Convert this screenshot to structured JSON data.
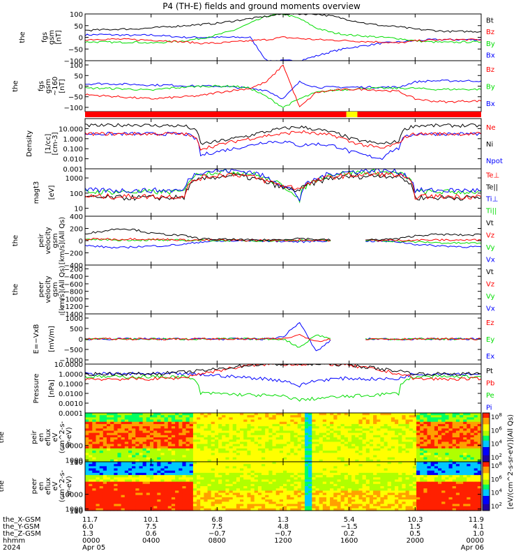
{
  "title": "P4 (TH-E) fields and ground moments overview",
  "colors": {
    "black": "#000000",
    "red": "#ff0000",
    "green": "#00dd00",
    "blue": "#0000ff",
    "yellow": "#ffff00"
  },
  "bars": {
    "segments": [
      {
        "from": "0000",
        "to": "1550",
        "color": "red"
      },
      {
        "from": "1550",
        "to": "1630",
        "color": "yellow"
      },
      {
        "from": "1630",
        "to": "2400",
        "color": "red"
      }
    ]
  },
  "chart_data": [
    {
      "type": "line",
      "id": "fgs",
      "ylabel": [
        "the",
        "fgs",
        "gsm",
        "[nT]"
      ],
      "ylim": [
        -100,
        100
      ],
      "yticks": [
        "100",
        "50",
        "0",
        "−50",
        "−100"
      ],
      "series": [
        {
          "name": "Bt",
          "color": "black",
          "values": [
            30,
            32,
            35,
            36,
            40,
            45,
            50,
            55,
            60,
            70,
            80,
            90,
            100,
            100,
            100,
            90,
            75,
            60,
            50,
            45,
            35,
            30,
            25,
            25,
            25
          ]
        },
        {
          "name": "Bz",
          "color": "red",
          "values": [
            -10,
            -8,
            -8,
            -10,
            -12,
            -15,
            -20,
            -25,
            -25,
            -20,
            -15,
            -10,
            0,
            -5,
            -10,
            -12,
            -15,
            -18,
            -20,
            -25,
            -15,
            -12,
            -10,
            -10,
            -10
          ]
        },
        {
          "name": "By",
          "color": "green",
          "values": [
            -20,
            -20,
            -22,
            -20,
            -25,
            -20,
            -15,
            -5,
            10,
            30,
            60,
            90,
            100,
            80,
            40,
            20,
            10,
            5,
            0,
            -5,
            -15,
            -20,
            -22,
            -20,
            -20
          ]
        },
        {
          "name": "Bx",
          "color": "blue",
          "values": [
            10,
            12,
            10,
            8,
            10,
            5,
            0,
            0,
            0,
            0,
            0,
            -100,
            -100,
            -100,
            -80,
            -60,
            -45,
            -35,
            -25,
            -20,
            -15,
            -10,
            -10,
            -10,
            -10
          ]
        }
      ]
    },
    {
      "type": "line",
      "id": "fgl",
      "ylabel": [
        "the",
        "fgs",
        "gsm",
        "~160",
        "[nT]"
      ],
      "ylim": [
        -120,
        120
      ],
      "yticks": [
        "100",
        "50",
        "0",
        "−50",
        "−100"
      ],
      "series": [
        {
          "name": "Bz",
          "color": "red",
          "values": [
            -40,
            -45,
            -50,
            -55,
            -60,
            -55,
            -50,
            -45,
            -30,
            -20,
            -10,
            20,
            100,
            -100,
            -30,
            -20,
            -15,
            -15,
            -20,
            -25,
            -60,
            -70,
            -75,
            -70,
            -70
          ]
        },
        {
          "name": "By",
          "color": "green",
          "values": [
            -10,
            -10,
            -12,
            -15,
            -20,
            -10,
            -5,
            0,
            0,
            0,
            -10,
            -50,
            -100,
            -60,
            -30,
            -20,
            -15,
            -10,
            -10,
            -10,
            -10,
            -15,
            -15,
            -15,
            -15
          ]
        },
        {
          "name": "Bx",
          "color": "blue",
          "values": [
            10,
            12,
            10,
            8,
            5,
            5,
            2,
            0,
            0,
            -5,
            -10,
            -20,
            -60,
            20,
            -5,
            -5,
            -5,
            -5,
            -5,
            -5,
            20,
            25,
            25,
            25,
            25
          ]
        }
      ]
    },
    {
      "type": "line",
      "id": "density",
      "log": true,
      "ylabel": [
        "Density",
        "[1/cc]",
        "[cm-3]"
      ],
      "ylim": [
        0.001,
        100
      ],
      "yticks": [
        "10.000",
        "1.000",
        "0.100",
        "0.010",
        "0.001"
      ],
      "series": [
        {
          "name": "Ne",
          "color": "red",
          "values": [
            3,
            3,
            3,
            3,
            3,
            3,
            3,
            0.1,
            0.2,
            0.5,
            1,
            2,
            3,
            5,
            3,
            2,
            0.5,
            0.2,
            0.1,
            0.3,
            3,
            3,
            3,
            3,
            3
          ]
        },
        {
          "name": "Ni",
          "color": "black",
          "values": [
            20,
            20,
            22,
            25,
            20,
            20,
            18,
            0.3,
            0.5,
            1,
            2,
            5,
            10,
            15,
            8,
            4,
            1,
            0.5,
            0.3,
            0.5,
            20,
            20,
            20,
            20,
            20
          ]
        },
        {
          "name": "Npot",
          "color": "blue",
          "values": [
            3,
            3,
            3,
            3,
            3,
            3,
            3,
            0.02,
            0.05,
            0.1,
            0.2,
            0.5,
            0.5,
            0.2,
            0.3,
            0.2,
            0.05,
            0.02,
            0.01,
            0.1,
            3,
            3,
            3,
            3,
            3
          ]
        }
      ]
    },
    {
      "type": "line",
      "id": "temperature",
      "log": true,
      "ylabel": [
        "magt3",
        "[eV]"
      ],
      "ylim": [
        3,
        4000
      ],
      "yticks": [
        "1000",
        "100",
        "10"
      ],
      "series": [
        {
          "name": "Te⊥",
          "color": "red",
          "values": [
            60,
            60,
            60,
            60,
            60,
            60,
            60,
            1000,
            1500,
            1800,
            1200,
            600,
            300,
            200,
            600,
            1200,
            1500,
            1600,
            1800,
            1500,
            60,
            60,
            60,
            60,
            60
          ]
        },
        {
          "name": "Te||",
          "color": "black",
          "values": [
            50,
            50,
            50,
            50,
            50,
            50,
            50,
            800,
            1200,
            1500,
            1000,
            500,
            200,
            150,
            500,
            1000,
            1200,
            1300,
            1500,
            1200,
            50,
            50,
            50,
            50,
            50
          ]
        },
        {
          "name": "Ti⊥",
          "color": "blue",
          "values": [
            150,
            150,
            150,
            150,
            150,
            150,
            150,
            2500,
            3000,
            3000,
            2500,
            1000,
            300,
            30,
            800,
            2000,
            2500,
            3000,
            3000,
            2500,
            150,
            150,
            150,
            150,
            150
          ]
        },
        {
          "name": "Ti||",
          "color": "green",
          "values": [
            120,
            120,
            120,
            120,
            120,
            120,
            120,
            2000,
            2500,
            2500,
            2000,
            800,
            250,
            25,
            700,
            1800,
            2200,
            2500,
            2500,
            2000,
            120,
            120,
            120,
            120,
            120
          ]
        }
      ]
    },
    {
      "type": "line",
      "id": "pei_velocity",
      "ylabel": [
        "the",
        "peir",
        "velocity",
        "gsm",
        "[km/s](All Qs)"
      ],
      "ylim": [
        -400,
        400
      ],
      "yticks": [
        "400",
        "200",
        "0",
        "−200",
        "−400"
      ],
      "series": [
        {
          "name": "Vt",
          "color": "black",
          "values": [
            120,
            150,
            200,
            180,
            120,
            100,
            80,
            30,
            20,
            20,
            10,
            10,
            20,
            40,
            20,
            10,
            null,
            10,
            20,
            30,
            80,
            100,
            100,
            90,
            100
          ]
        },
        {
          "name": "Vz",
          "color": "red",
          "values": [
            20,
            30,
            20,
            30,
            20,
            20,
            10,
            10,
            10,
            5,
            5,
            5,
            0,
            10,
            5,
            5,
            null,
            5,
            5,
            5,
            10,
            10,
            10,
            10,
            10
          ]
        },
        {
          "name": "Vy",
          "color": "green",
          "values": [
            10,
            20,
            10,
            10,
            10,
            5,
            5,
            5,
            5,
            0,
            0,
            0,
            0,
            10,
            0,
            0,
            null,
            0,
            0,
            -10,
            -20,
            -30,
            -40,
            -40,
            -40
          ]
        },
        {
          "name": "Vx",
          "color": "blue",
          "values": [
            -80,
            -100,
            -120,
            -100,
            -90,
            -80,
            -60,
            -20,
            -10,
            -5,
            -5,
            -5,
            -10,
            -20,
            -5,
            -5,
            null,
            -5,
            -10,
            -20,
            -60,
            -80,
            -90,
            -100,
            -100
          ]
        }
      ]
    },
    {
      "type": "line",
      "id": "pee_velocity",
      "ylabel": [
        "the",
        "peer",
        "velocity",
        "gsm",
        "[km/s](All Qs)"
      ],
      "ylim": [
        -1400,
        -100
      ],
      "yticks": [
        "−200",
        "−400",
        "−600",
        "−800",
        "−1000",
        "−1200",
        "−1400"
      ],
      "series": [
        {
          "name": "Vt",
          "color": "black",
          "values": []
        },
        {
          "name": "Vz",
          "color": "red",
          "values": []
        },
        {
          "name": "Vy",
          "color": "green",
          "values": []
        },
        {
          "name": "Vx",
          "color": "blue",
          "values": []
        }
      ]
    },
    {
      "type": "line",
      "id": "efield",
      "ylabel": [
        "E=−VxB",
        "[mV/m]"
      ],
      "ylim": [
        -1200,
        1200
      ],
      "yticks": [
        "1000",
        "500",
        "0",
        "−500",
        "−1000"
      ],
      "series": [
        {
          "name": "Ez",
          "color": "red",
          "values": [
            0,
            0,
            0,
            0,
            0,
            0,
            0,
            0,
            0,
            0,
            0,
            0,
            0,
            200,
            -100,
            0,
            null,
            0,
            0,
            0,
            0,
            0,
            0,
            0,
            0
          ]
        },
        {
          "name": "Ey",
          "color": "green",
          "values": [
            0,
            0,
            0,
            0,
            0,
            0,
            0,
            0,
            0,
            0,
            0,
            0,
            0,
            -400,
            200,
            0,
            null,
            0,
            0,
            0,
            0,
            0,
            0,
            0,
            0
          ]
        },
        {
          "name": "Ex",
          "color": "blue",
          "values": [
            0,
            0,
            0,
            0,
            0,
            0,
            0,
            0,
            0,
            0,
            0,
            0,
            100,
            800,
            -600,
            0,
            null,
            0,
            0,
            0,
            0,
            0,
            0,
            0,
            0
          ]
        }
      ]
    },
    {
      "type": "line",
      "id": "pressure",
      "log": true,
      "ylabel": [
        "Pressure",
        "[nPa]"
      ],
      "ylim": [
        0.0001,
        10
      ],
      "yticks": [
        "10.0000",
        "1.0000",
        "0.1000",
        "0.0100",
        "0.0010",
        "0.0001"
      ],
      "series": [
        {
          "name": "Pt",
          "color": "black",
          "values": [
            1,
            1,
            1,
            1,
            1,
            1.2,
            1.5,
            2,
            3,
            5,
            8,
            10,
            10,
            10,
            10,
            10,
            8,
            5,
            3,
            2,
            1,
            1,
            1,
            1,
            1
          ]
        },
        {
          "name": "Pb",
          "color": "red",
          "values": [
            0.3,
            0.3,
            0.3,
            0.3,
            0.3,
            0.35,
            0.4,
            1,
            2,
            4,
            7,
            10,
            10,
            10,
            10,
            10,
            7,
            4,
            2,
            1,
            0.3,
            0.3,
            0.3,
            0.3,
            0.3
          ]
        },
        {
          "name": "Pe",
          "color": "green",
          "values": [
            0.5,
            0.5,
            0.5,
            0.5,
            0.5,
            0.5,
            0.5,
            0.01,
            0.01,
            0.008,
            0.007,
            0.006,
            0.005,
            0.002,
            0.003,
            0.004,
            0.005,
            0.006,
            0.008,
            0.01,
            0.5,
            0.5,
            0.5,
            0.5,
            0.5
          ]
        },
        {
          "name": "Pi",
          "color": "blue",
          "values": [
            1,
            1,
            1,
            1,
            1,
            1,
            1,
            0.8,
            0.7,
            0.5,
            0.4,
            0.3,
            0.2,
            0.05,
            0.2,
            0.3,
            0.35,
            0.3,
            0.3,
            0.3,
            1,
            1,
            1,
            1,
            1
          ]
        }
      ]
    },
    {
      "type": "heatmap",
      "id": "peir_spec",
      "ylabel": [
        "the",
        "peir",
        "en",
        "eflux",
        "eV",
        "(cm^2-s-",
        "sr-eV)"
      ],
      "ylim": [
        5,
        30000
      ],
      "yticks": [
        "10000",
        "1000",
        "100",
        "10"
      ]
    },
    {
      "type": "heatmap",
      "id": "peer_spec",
      "ylabel": [
        "the",
        "peer",
        "en",
        "eflux",
        "eV",
        "(cm^2-s-",
        "sr-eV)"
      ],
      "ylim": [
        5,
        30000
      ],
      "yticks": [
        "10000",
        "1000",
        "100",
        "10"
      ]
    }
  ],
  "colorbar": {
    "label": "[eV/(cm^2-s-sr-eV)](All Qs)",
    "ticks": [
      "10^8",
      "10^6",
      "10^4",
      "10^2"
    ]
  },
  "xaxis": {
    "rows": [
      {
        "label": "the_X-GSM",
        "values": [
          "11.7",
          "10.1",
          "6.8",
          "1.3",
          "5.4",
          "10.3",
          "11.9"
        ]
      },
      {
        "label": "the_Y-GSM",
        "values": [
          "6.0",
          "7.5",
          "7.5",
          "4.8",
          "−1.5",
          "1.5",
          "4.1"
        ]
      },
      {
        "label": "the_Z-GSM",
        "values": [
          "1.3",
          "0.6",
          "−0.7",
          "−0.7",
          "0.2",
          "0.5",
          "1.0"
        ]
      },
      {
        "label": "hhmm",
        "values": [
          "0000",
          "0400",
          "0800",
          "1200",
          "1600",
          "2000",
          "0000"
        ]
      },
      {
        "label": "2024",
        "values": [
          "Apr 05",
          "",
          "",
          "",
          "",
          "",
          "Apr 06"
        ]
      }
    ]
  }
}
